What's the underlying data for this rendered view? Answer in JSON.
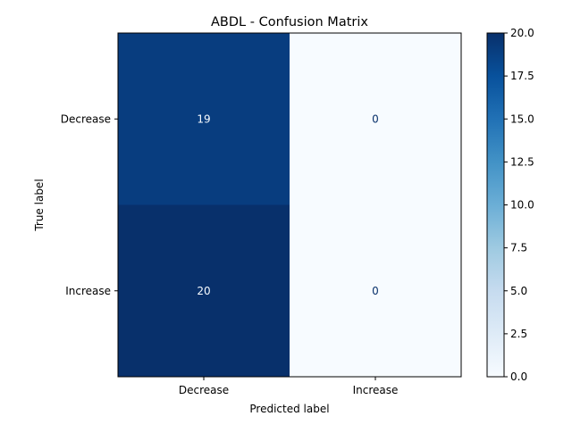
{
  "chart_data": {
    "type": "heatmap",
    "title": "ABDL - Confusion Matrix",
    "xlabel": "Predicted label",
    "ylabel": "True label",
    "x_categories": [
      "Decrease",
      "Increase"
    ],
    "y_categories": [
      "Decrease",
      "Increase"
    ],
    "values": [
      [
        19,
        0
      ],
      [
        20,
        0
      ]
    ],
    "colormap": "Blues",
    "color_range": [
      0,
      20
    ],
    "colorbar_ticks": [
      "0.0",
      "2.5",
      "5.0",
      "7.5",
      "10.0",
      "12.5",
      "15.0",
      "17.5",
      "20.0"
    ],
    "colors": {
      "low": "#f7fbff",
      "high": "#08306b",
      "text_light": "#f7fbff",
      "text_dark": "#08306b"
    }
  }
}
